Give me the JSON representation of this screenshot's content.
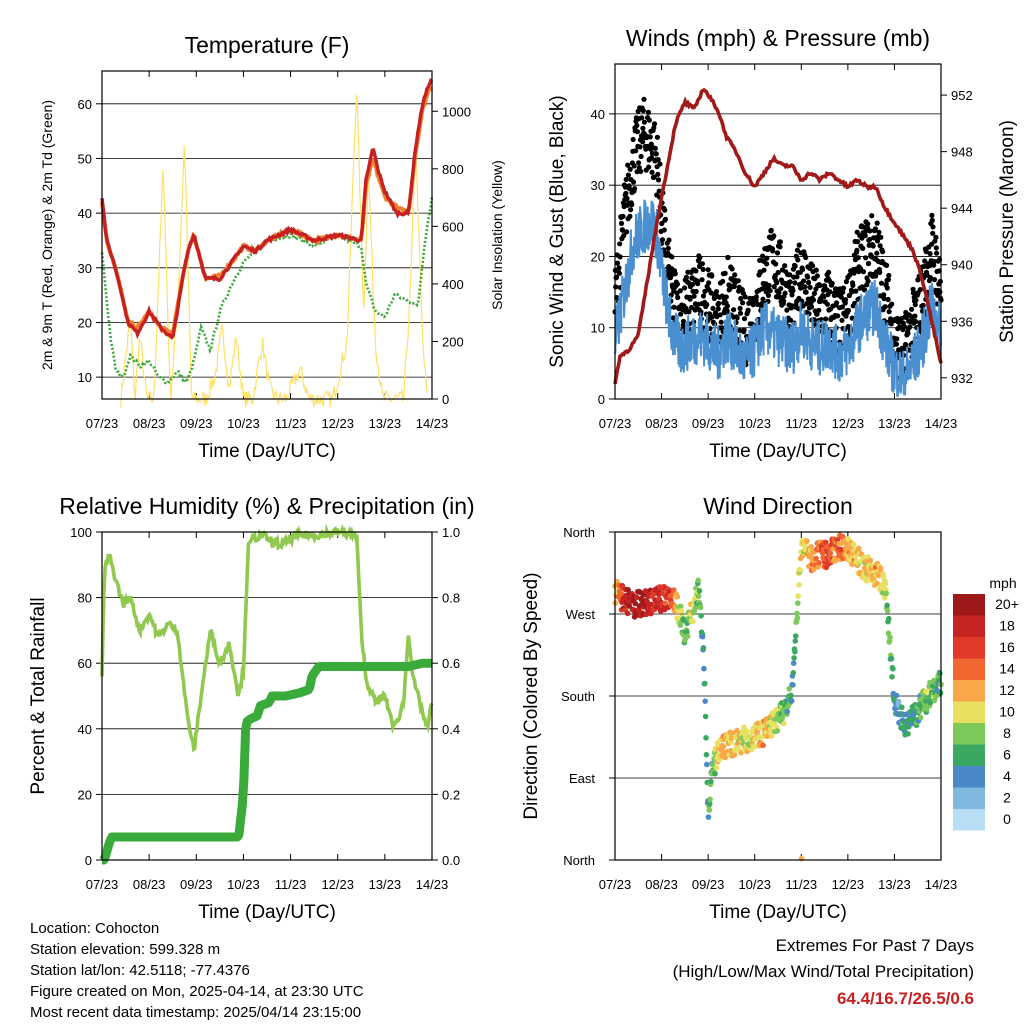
{
  "chart_data": [
    {
      "id": "temperature",
      "type": "line",
      "title": "Temperature (F)",
      "xlabel": "Time (Day/UTC)",
      "ylabel": "2m & 9m T (Red, Orange) & 2m Td (Green)",
      "y2label": "Solar Insolation (Yellow)",
      "x_ticks": [
        "07/23",
        "08/23",
        "09/23",
        "10/23",
        "11/23",
        "12/23",
        "13/23",
        "14/23"
      ],
      "xlim": [
        0,
        7
      ],
      "ylim": [
        6,
        66
      ],
      "y_ticks": [
        10,
        20,
        30,
        40,
        50,
        60
      ],
      "y2lim": [
        0,
        1140
      ],
      "y2_ticks": [
        0,
        200,
        400,
        600,
        800,
        1000
      ],
      "grid": "horizontal",
      "colors": {
        "t2m": "#c62020",
        "t9m": "#f08030",
        "td": "#3aa83a",
        "solar": "#ffe066"
      },
      "series": [
        {
          "key": "t2m",
          "axis": "left",
          "x": [
            0,
            0.1,
            0.25,
            0.4,
            0.55,
            0.75,
            1.0,
            1.25,
            1.5,
            1.75,
            1.85,
            1.95,
            2.2,
            2.5,
            2.75,
            3.0,
            3.25,
            3.5,
            4.0,
            4.5,
            5.0,
            5.5,
            5.6,
            5.75,
            5.85,
            6.0,
            6.25,
            6.5,
            6.65,
            6.8,
            6.95,
            7.0
          ],
          "y": [
            43,
            35,
            31,
            26,
            20,
            18,
            22,
            19,
            17,
            30,
            34,
            36,
            28,
            28,
            31,
            34,
            33,
            35,
            37,
            35,
            36,
            35,
            46,
            52,
            48,
            44,
            40,
            40,
            52,
            60,
            64,
            64
          ]
        },
        {
          "key": "t9m",
          "axis": "left",
          "x": [
            0,
            0.1,
            0.25,
            0.4,
            0.55,
            0.75,
            1.0,
            1.25,
            1.5,
            1.75,
            1.85,
            1.95,
            2.2,
            2.5,
            2.75,
            3.0,
            3.25,
            3.5,
            4.0,
            4.5,
            5.0,
            5.5,
            5.6,
            5.75,
            5.85,
            6.0,
            6.25,
            6.5,
            6.65,
            6.8,
            6.95,
            7.0
          ],
          "y": [
            42,
            35,
            31,
            26,
            20,
            19,
            22,
            19,
            18,
            30,
            34,
            36,
            28,
            28.5,
            31,
            34,
            33,
            35,
            37,
            35,
            36,
            35,
            45,
            50,
            47,
            43,
            41,
            40,
            51,
            59,
            63,
            63
          ]
        },
        {
          "key": "td",
          "axis": "left",
          "x": [
            0,
            0.1,
            0.2,
            0.3,
            0.45,
            0.6,
            0.8,
            1.0,
            1.2,
            1.4,
            1.6,
            1.8,
            1.95,
            2.1,
            2.3,
            2.5,
            2.75,
            3.0,
            3.5,
            4.0,
            4.5,
            5.0,
            5.5,
            5.6,
            5.8,
            6.0,
            6.2,
            6.5,
            6.7,
            6.85,
            7.0
          ],
          "y": [
            33,
            24,
            16,
            11,
            10,
            14,
            12,
            13,
            10,
            9,
            11,
            9,
            13,
            19,
            15,
            22,
            27,
            31,
            35,
            36,
            34,
            36,
            34,
            27,
            22,
            21,
            25,
            24,
            23,
            35,
            43
          ]
        },
        {
          "key": "solar",
          "axis": "right",
          "x": [
            0.4,
            0.6,
            0.7,
            0.8,
            0.95,
            1.1,
            1.3,
            1.45,
            1.6,
            1.75,
            1.9,
            2.05,
            2.2,
            2.4,
            2.55,
            2.7,
            2.85,
            3.0,
            3.2,
            3.4,
            3.55,
            3.7,
            3.9,
            4.2,
            4.4,
            4.55,
            4.7,
            4.9,
            5.2,
            5.4,
            5.55,
            5.65,
            5.8,
            5.95,
            6.1,
            6.4,
            6.55,
            6.65,
            6.8,
            6.9
          ],
          "y": [
            0,
            280,
            0,
            220,
            0,
            0,
            820,
            0,
            300,
            900,
            0,
            0,
            0,
            80,
            240,
            40,
            220,
            0,
            0,
            200,
            40,
            0,
            0,
            100,
            0,
            0,
            0,
            0,
            200,
            1100,
            300,
            800,
            200,
            0,
            0,
            0,
            400,
            900,
            200,
            0
          ]
        }
      ]
    },
    {
      "id": "winds",
      "type": "scatter",
      "title": "Winds (mph) & Pressure (mb)",
      "xlabel": "Time (Day/UTC)",
      "ylabel": "Sonic Wind & Gust (Blue, Black)",
      "y2label": "Station Pressure (Maroon)",
      "x_ticks": [
        "07/23",
        "08/23",
        "09/23",
        "10/23",
        "11/23",
        "12/23",
        "13/23",
        "14/23"
      ],
      "xlim": [
        0,
        7
      ],
      "ylim": [
        0,
        47
      ],
      "y_ticks": [
        0,
        10,
        20,
        30,
        40
      ],
      "y2lim": [
        930.5,
        954.2
      ],
      "y2_ticks": [
        932,
        936,
        940,
        944,
        948,
        952
      ],
      "grid": "horizontal",
      "colors": {
        "wind": "#4a90d0",
        "gust": "#000000",
        "pressure": "#a01a1a"
      },
      "series": [
        {
          "key": "wind",
          "axis": "left",
          "x": [
            0,
            0.2,
            0.4,
            0.6,
            0.8,
            0.9,
            1.0,
            1.2,
            1.4,
            1.6,
            1.8,
            2.0,
            2.2,
            2.4,
            2.6,
            2.8,
            3.0,
            3.2,
            3.4,
            3.6,
            3.8,
            4.0,
            4.2,
            4.4,
            4.6,
            4.8,
            5.0,
            5.2,
            5.4,
            5.6,
            5.8,
            6.0,
            6.2,
            6.4,
            6.6,
            6.8,
            7.0
          ],
          "y": [
            8,
            15,
            22,
            24,
            25,
            23,
            18,
            10,
            7,
            8,
            9,
            8,
            6,
            9,
            7,
            5,
            7,
            10,
            9,
            8,
            7,
            10,
            8,
            7,
            8,
            6,
            7,
            10,
            12,
            13,
            8,
            4,
            3,
            5,
            8,
            13,
            9
          ],
          "spread": 4
        },
        {
          "key": "gust",
          "axis": "left",
          "x": [
            0,
            0.2,
            0.4,
            0.6,
            0.8,
            0.9,
            1.0,
            1.2,
            1.4,
            1.6,
            1.8,
            2.0,
            2.2,
            2.4,
            2.6,
            2.8,
            3.0,
            3.2,
            3.4,
            3.6,
            3.8,
            4.0,
            4.2,
            4.4,
            4.6,
            4.8,
            5.0,
            5.2,
            5.4,
            5.6,
            5.8,
            6.0,
            6.2,
            6.4,
            6.6,
            6.8,
            7.0
          ],
          "y": [
            12,
            24,
            32,
            36,
            34,
            32,
            24,
            14,
            10,
            12,
            14,
            12,
            9,
            14,
            11,
            8,
            11,
            16,
            18,
            15,
            11,
            17,
            13,
            11,
            12,
            9,
            11,
            17,
            19,
            20,
            14,
            7,
            5,
            9,
            13,
            20,
            14
          ],
          "spread": 5
        },
        {
          "key": "pressure",
          "axis": "right",
          "x": [
            0,
            0.1,
            0.3,
            0.5,
            0.7,
            0.9,
            1.1,
            1.3,
            1.5,
            1.7,
            1.9,
            2.0,
            2.2,
            2.4,
            2.6,
            2.8,
            3.0,
            3.2,
            3.4,
            3.6,
            3.8,
            4.0,
            4.2,
            4.4,
            4.6,
            4.8,
            5.0,
            5.2,
            5.4,
            5.6,
            5.8,
            6.0,
            6.2,
            6.4,
            6.6,
            6.8,
            7.0
          ],
          "y": [
            931.5,
            933.5,
            934,
            935,
            939,
            943,
            946.5,
            950,
            951.5,
            951,
            952.5,
            952,
            951,
            949,
            948,
            946.5,
            945.5,
            946.5,
            947.5,
            947,
            947,
            946,
            946.5,
            946,
            946.5,
            946,
            945.5,
            946,
            945.5,
            945.5,
            944,
            943,
            942,
            941,
            939,
            936,
            933
          ]
        }
      ]
    },
    {
      "id": "humidity",
      "type": "line",
      "title": "Relative Humidity (%) & Precipitation (in)",
      "xlabel": "Time (Day/UTC)",
      "ylabel": "Percent & Total Rainfall",
      "x_ticks": [
        "07/23",
        "08/23",
        "09/23",
        "10/23",
        "11/23",
        "12/23",
        "13/23",
        "14/23"
      ],
      "xlim": [
        0,
        7
      ],
      "ylim": [
        0,
        100
      ],
      "y_ticks": [
        0,
        20,
        40,
        60,
        80,
        100
      ],
      "y2lim": [
        0,
        1
      ],
      "y2_ticks": [
        "0.0",
        "0.2",
        "0.4",
        "0.6",
        "0.8",
        "1.0"
      ],
      "grid": "horizontal",
      "colors": {
        "rh": "#90c850",
        "precip": "#3aaa3a"
      },
      "series": [
        {
          "key": "rh",
          "axis": "left",
          "x": [
            0,
            0.05,
            0.15,
            0.3,
            0.45,
            0.6,
            0.8,
            1.0,
            1.2,
            1.4,
            1.6,
            1.8,
            1.95,
            2.1,
            2.3,
            2.5,
            2.7,
            2.9,
            3.0,
            3.1,
            3.2,
            3.4,
            3.6,
            3.8,
            4.0,
            4.2,
            4.5,
            5.0,
            5.4,
            5.5,
            5.6,
            5.8,
            6.0,
            6.2,
            6.4,
            6.5,
            6.6,
            6.8,
            6.9,
            7.0
          ],
          "y": [
            55,
            88,
            93,
            85,
            78,
            80,
            70,
            75,
            68,
            72,
            70,
            45,
            33,
            50,
            70,
            60,
            66,
            50,
            58,
            95,
            98,
            99,
            97,
            96,
            98,
            99,
            99,
            100,
            99,
            70,
            55,
            48,
            50,
            40,
            48,
            70,
            55,
            45,
            40,
            48
          ]
        },
        {
          "key": "precip",
          "axis": "right",
          "x": [
            0,
            0.05,
            0.15,
            0.2,
            0.5,
            1.0,
            1.5,
            2.0,
            2.5,
            2.9,
            3.0,
            3.05,
            3.15,
            3.3,
            3.35,
            3.55,
            3.6,
            3.9,
            4.2,
            4.4,
            4.45,
            4.6,
            5.0,
            5.5,
            6.0,
            6.5,
            6.8,
            7.0
          ],
          "y": [
            0,
            0,
            0.05,
            0.07,
            0.07,
            0.07,
            0.07,
            0.07,
            0.07,
            0.07,
            0.2,
            0.42,
            0.43,
            0.44,
            0.47,
            0.48,
            0.5,
            0.5,
            0.51,
            0.52,
            0.56,
            0.59,
            0.59,
            0.59,
            0.59,
            0.59,
            0.6,
            0.6
          ]
        }
      ]
    },
    {
      "id": "direction",
      "type": "scatter",
      "title": "Wind Direction",
      "xlabel": "Time (Day/UTC)",
      "ylabel": "Direction (Colored By Speed)",
      "x_ticks": [
        "07/23",
        "08/23",
        "09/23",
        "10/23",
        "11/23",
        "12/23",
        "13/23",
        "14/23"
      ],
      "y_ticks": [
        "North",
        "East",
        "South",
        "West",
        "North"
      ],
      "xlim": [
        0,
        7
      ],
      "ylim": [
        0,
        360
      ],
      "grid": "horizontal",
      "legend": {
        "title": "mph",
        "labels": [
          "20+",
          "18",
          "16",
          "14",
          "12",
          "10",
          "8",
          "6",
          "4",
          "2",
          "0"
        ],
        "colors": [
          "#9e1a1a",
          "#c62323",
          "#e03a2a",
          "#f06530",
          "#f8a848",
          "#e8e060",
          "#7cc858",
          "#3aa860",
          "#4a88c8",
          "#80b8e0",
          "#b8def5"
        ],
        "placement": "right"
      },
      "series": [
        {
          "key": "direction",
          "x": [
            0,
            0.2,
            0.4,
            0.6,
            0.8,
            1.0,
            1.2,
            1.4,
            1.5,
            1.6,
            1.7,
            1.8,
            1.9,
            2.0,
            2.1,
            2.2,
            2.4,
            2.6,
            2.8,
            3.0,
            3.2,
            3.4,
            3.6,
            3.8,
            4.0,
            4.1,
            4.2,
            4.4,
            4.6,
            4.8,
            5.0,
            5.2,
            5.4,
            5.6,
            5.8,
            6.0,
            6.1,
            6.2,
            6.4,
            6.6,
            6.8,
            7.0
          ],
          "y": [
            295,
            285,
            280,
            282,
            283,
            287,
            290,
            270,
            250,
            265,
            280,
            295,
            240,
            50,
            100,
            115,
            125,
            130,
            132,
            135,
            140,
            150,
            160,
            180,
            350,
            340,
            330,
            335,
            335,
            345,
            340,
            330,
            320,
            315,
            300,
            180,
            160,
            150,
            155,
            170,
            185,
            195
          ],
          "speed": [
            10,
            18,
            20,
            19,
            18,
            17,
            16,
            8,
            6,
            10,
            9,
            7,
            5,
            6,
            7,
            10,
            12,
            11,
            10,
            11,
            12,
            9,
            8,
            5,
            10,
            11,
            12,
            14,
            15,
            14,
            12,
            11,
            10,
            12,
            9,
            5,
            4,
            6,
            5,
            7,
            8,
            6
          ]
        }
      ]
    }
  ],
  "info": {
    "location": "Location: Cohocton",
    "elevation": "Station elevation: 599.328 m",
    "latlon": "Station lat/lon: 42.5118; -77.4376",
    "created": "Figure created on Mon, 2025-04-14, at 23:30 UTC",
    "timestamp": "Most recent data timestamp: 2025/04/14 23:15:00"
  },
  "extremes": {
    "title": "Extremes For Past 7 Days",
    "subtitle": "(High/Low/Max Wind/Total Precipitation)",
    "values": "64.4/16.7/26.5/0.6",
    "color": "#c62020"
  }
}
